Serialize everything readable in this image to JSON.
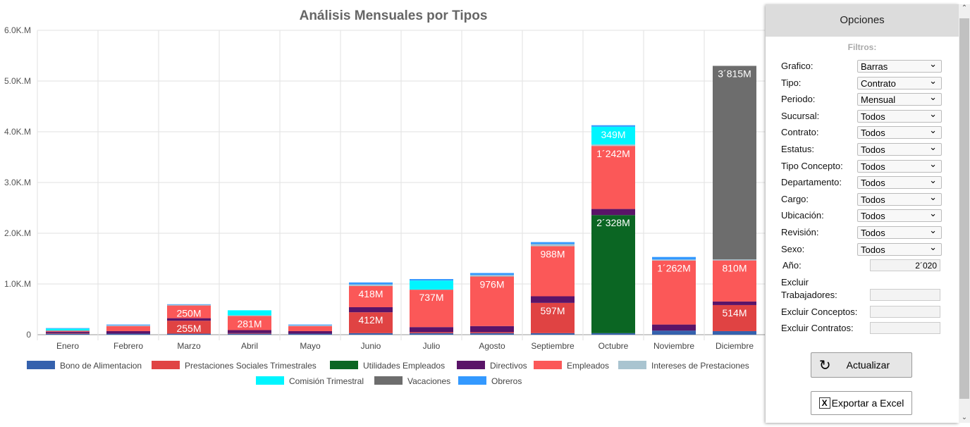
{
  "chart_data": {
    "type": "bar",
    "stacked": true,
    "title": "Análisis Mensuales por Tipos",
    "ylim": [
      0,
      6000
    ],
    "yticks": [
      "0",
      "1.0K.M",
      "2.0K.M",
      "3.0K.M",
      "4.0K.M",
      "5.0K.M",
      "6.0K.M"
    ],
    "categories": [
      "Enero",
      "Febrero",
      "Marzo",
      "Abril",
      "Mayo",
      "Junio",
      "Julio",
      "Agosto",
      "Septiembre",
      "Octubre",
      "Noviembre",
      "Diciembre"
    ],
    "series": [
      {
        "name": "Bono de Alimentacion",
        "color": "#3561ad",
        "values": [
          20,
          20,
          20,
          20,
          20,
          30,
          30,
          30,
          30,
          30,
          80,
          70
        ]
      },
      {
        "name": "Prestaciones Sociales Trimestrales",
        "color": "#e04343",
        "values": [
          10,
          0,
          255,
          10,
          0,
          412,
          20,
          20,
          597,
          0,
          0,
          514
        ]
      },
      {
        "name": "Utilidades Empleados",
        "color": "#0b6623",
        "values": [
          0,
          0,
          0,
          0,
          0,
          0,
          0,
          0,
          0,
          2328,
          0,
          0
        ]
      },
      {
        "name": "Directivos",
        "color": "#5a1468",
        "values": [
          30,
          50,
          50,
          60,
          50,
          100,
          100,
          120,
          130,
          120,
          120,
          70
        ]
      },
      {
        "name": "Empleados",
        "color": "#fb5858",
        "values": [
          20,
          100,
          250,
          281,
          100,
          418,
          737,
          976,
          988,
          1242,
          1262,
          810
        ]
      },
      {
        "name": "Intereses de Prestaciones",
        "color": "#a9c4d0",
        "values": [
          0,
          15,
          15,
          10,
          15,
          30,
          0,
          30,
          40,
          30,
          20,
          20
        ]
      },
      {
        "name": "Comisión Trimestral",
        "color": "#00f5ff",
        "values": [
          40,
          0,
          0,
          100,
          0,
          0,
          180,
          0,
          0,
          349,
          0,
          0
        ]
      },
      {
        "name": "Vacaciones",
        "color": "#6d6d6d",
        "values": [
          0,
          0,
          0,
          0,
          0,
          0,
          0,
          0,
          0,
          0,
          0,
          3815
        ]
      },
      {
        "name": "Obreros",
        "color": "#3399ff",
        "values": [
          10,
          15,
          10,
          0,
          15,
          40,
          30,
          40,
          40,
          30,
          50,
          0
        ]
      }
    ]
  },
  "panel": {
    "title": "Opciones",
    "filters_label": "Filtros:",
    "fields": [
      {
        "label": "Grafico:",
        "value": "Barras"
      },
      {
        "label": "Tipo:",
        "value": "Contrato"
      },
      {
        "label": "Periodo:",
        "value": "Mensual"
      },
      {
        "label": "Sucursal:",
        "value": "Todos"
      },
      {
        "label": "Contrato:",
        "value": "Todos"
      },
      {
        "label": "Estatus:",
        "value": "Todos"
      },
      {
        "label": "Tipo Concepto:",
        "value": "Todos"
      },
      {
        "label": "Departamento:",
        "value": "Todos"
      },
      {
        "label": "Cargo:",
        "value": "Todos"
      },
      {
        "label": "Ubicación:",
        "value": "Todos"
      },
      {
        "label": "Revisión:",
        "value": "Todos"
      },
      {
        "label": "Sexo:",
        "value": "Todos"
      }
    ],
    "year_label": "Año:",
    "year_value": "2´020",
    "excl_workers_1": "Excluir",
    "excl_workers_2": "Trabajadores:",
    "excl_concepts": "Excluir Conceptos:",
    "excl_contracts": "Excluir Contratos:",
    "update": "Actualizar",
    "export": "Exportar a Excel"
  }
}
